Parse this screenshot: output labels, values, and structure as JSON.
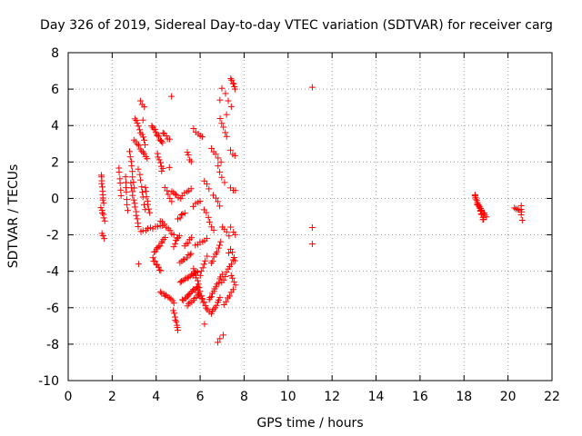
{
  "chart_data": {
    "type": "scatter",
    "title": "Day 326 of 2019, Sidereal Day-to-day VTEC variation (SDTVAR) for receiver carg",
    "xlabel": "GPS time / hours",
    "ylabel": "SDTVAR / TECUs",
    "xlim": [
      0,
      22
    ],
    "ylim": [
      -10,
      8
    ],
    "grid": true,
    "marker": "+",
    "color": "#ff0000",
    "x_ticks": [
      "0",
      "2",
      "4",
      "6",
      "8",
      "10",
      "12",
      "14",
      "16",
      "18",
      "20",
      "22"
    ],
    "y_ticks": [
      "-10",
      "-8",
      "-6",
      "-4",
      "-2",
      "0",
      "2",
      "4",
      "6",
      "8"
    ],
    "clusters": [
      {
        "x_start": 1.5,
        "x_end": 1.6,
        "y_start": 1.3,
        "y_end": -0.3,
        "n": 10
      },
      {
        "x_start": 1.5,
        "x_end": 1.65,
        "y_start": -0.5,
        "y_end": -1.2,
        "n": 6
      },
      {
        "x_start": 1.55,
        "x_end": 1.62,
        "y_start": -1.9,
        "y_end": -2.2,
        "n": 3
      },
      {
        "x_start": 2.3,
        "x_end": 2.4,
        "y_start": 1.7,
        "y_end": 0.2,
        "n": 6
      },
      {
        "x_start": 2.6,
        "x_end": 2.7,
        "y_start": 1.2,
        "y_end": -0.6,
        "n": 7
      },
      {
        "x_start": 2.8,
        "x_end": 3.0,
        "y_start": 2.6,
        "y_end": 0.6,
        "n": 8
      },
      {
        "x_start": 2.85,
        "x_end": 3.2,
        "y_start": 0.8,
        "y_end": -1.6,
        "n": 12
      },
      {
        "x_start": 3.05,
        "x_end": 3.5,
        "y_start": 4.4,
        "y_end": 3.0,
        "n": 10
      },
      {
        "x_start": 3.0,
        "x_end": 3.6,
        "y_start": 3.2,
        "y_end": 2.2,
        "n": 10
      },
      {
        "x_start": 3.2,
        "x_end": 3.5,
        "y_start": 1.6,
        "y_end": -0.6,
        "n": 8
      },
      {
        "x_start": 3.3,
        "x_end": 3.45,
        "y_start": 5.4,
        "y_end": 5.0,
        "n": 3
      },
      {
        "x_start": 3.3,
        "x_end": 4.3,
        "y_start": -1.8,
        "y_end": -1.5,
        "n": 10
      },
      {
        "x_start": 3.5,
        "x_end": 3.7,
        "y_start": 0.6,
        "y_end": -0.8,
        "n": 7
      },
      {
        "x_start": 3.8,
        "x_end": 4.3,
        "y_start": 4.0,
        "y_end": 3.0,
        "n": 12
      },
      {
        "x_start": 3.9,
        "x_end": 4.4,
        "y_start": -3.0,
        "y_end": -2.2,
        "n": 10
      },
      {
        "x_start": 3.85,
        "x_end": 4.2,
        "y_start": -3.3,
        "y_end": -4.0,
        "n": 8
      },
      {
        "x_start": 4.05,
        "x_end": 4.3,
        "y_start": 2.5,
        "y_end": 1.6,
        "n": 6
      },
      {
        "x_start": 4.2,
        "x_end": 4.8,
        "y_start": -1.2,
        "y_end": -2.0,
        "n": 8
      },
      {
        "x_start": 4.3,
        "x_end": 4.6,
        "y_start": 3.6,
        "y_end": 3.2,
        "n": 5
      },
      {
        "x_start": 4.4,
        "x_end": 4.7,
        "y_start": 0.6,
        "y_end": -0.2,
        "n": 5
      },
      {
        "x_start": 4.2,
        "x_end": 4.8,
        "y_start": -5.1,
        "y_end": -5.7,
        "n": 10
      },
      {
        "x_start": 4.7,
        "x_end": 5.1,
        "y_start": 0.4,
        "y_end": 0.0,
        "n": 6
      },
      {
        "x_start": 4.8,
        "x_end": 5.05,
        "y_start": -2.6,
        "y_end": -2.0,
        "n": 6
      },
      {
        "x_start": 4.8,
        "x_end": 5.0,
        "y_start": -6.2,
        "y_end": -7.2,
        "n": 8
      },
      {
        "x_start": 5.0,
        "x_end": 5.3,
        "y_start": -1.1,
        "y_end": -0.8,
        "n": 5
      },
      {
        "x_start": 5.2,
        "x_end": 5.6,
        "y_start": 0.2,
        "y_end": 0.5,
        "n": 5
      },
      {
        "x_start": 5.1,
        "x_end": 5.6,
        "y_start": -3.5,
        "y_end": -3.0,
        "n": 8
      },
      {
        "x_start": 5.4,
        "x_end": 5.6,
        "y_start": 2.5,
        "y_end": 2.0,
        "n": 4
      },
      {
        "x_start": 5.3,
        "x_end": 5.6,
        "y_start": -2.6,
        "y_end": -2.2,
        "n": 5
      },
      {
        "x_start": 5.1,
        "x_end": 5.9,
        "y_start": -4.6,
        "y_end": -4.0,
        "n": 14
      },
      {
        "x_start": 5.2,
        "x_end": 5.9,
        "y_start": -5.6,
        "y_end": -4.8,
        "n": 14
      },
      {
        "x_start": 5.4,
        "x_end": 5.9,
        "y_start": -5.9,
        "y_end": -5.3,
        "n": 8
      },
      {
        "x_start": 5.7,
        "x_end": 6.1,
        "y_start": 3.8,
        "y_end": 3.4,
        "n": 5
      },
      {
        "x_start": 5.7,
        "x_end": 6.0,
        "y_start": -0.4,
        "y_end": -0.2,
        "n": 4
      },
      {
        "x_start": 5.8,
        "x_end": 6.3,
        "y_start": -2.6,
        "y_end": -2.2,
        "n": 6
      },
      {
        "x_start": 5.7,
        "x_end": 6.1,
        "y_start": -3.8,
        "y_end": -5.5,
        "n": 10
      },
      {
        "x_start": 5.9,
        "x_end": 6.4,
        "y_start": -5.2,
        "y_end": -6.2,
        "n": 10
      },
      {
        "x_start": 6.0,
        "x_end": 6.3,
        "y_start": -4.2,
        "y_end": -3.2,
        "n": 6
      },
      {
        "x_start": 6.2,
        "x_end": 6.4,
        "y_start": 1.0,
        "y_end": 0.5,
        "n": 3
      },
      {
        "x_start": 6.2,
        "x_end": 6.6,
        "y_start": -0.6,
        "y_end": -1.8,
        "n": 6
      },
      {
        "x_start": 6.5,
        "x_end": 6.8,
        "y_start": 2.8,
        "y_end": 2.2,
        "n": 4
      },
      {
        "x_start": 6.6,
        "x_end": 6.9,
        "y_start": 0.2,
        "y_end": -0.4,
        "n": 4
      },
      {
        "x_start": 6.5,
        "x_end": 6.95,
        "y_start": -3.6,
        "y_end": -2.4,
        "n": 8
      },
      {
        "x_start": 6.4,
        "x_end": 7.0,
        "y_start": -5.6,
        "y_end": -4.2,
        "n": 12
      },
      {
        "x_start": 6.5,
        "x_end": 6.9,
        "y_start": -6.3,
        "y_end": -5.5,
        "n": 8
      },
      {
        "x_start": 6.8,
        "x_end": 7.1,
        "y_start": 1.8,
        "y_end": 0.9,
        "n": 4
      },
      {
        "x_start": 6.9,
        "x_end": 7.2,
        "y_start": 4.4,
        "y_end": 3.4,
        "n": 5
      },
      {
        "x_start": 7.0,
        "x_end": 7.4,
        "y_start": 6.1,
        "y_end": 5.0,
        "n": 4
      },
      {
        "x_start": 7.0,
        "x_end": 7.3,
        "y_start": -1.6,
        "y_end": -2.0,
        "n": 4
      },
      {
        "x_start": 7.0,
        "x_end": 7.5,
        "y_start": -4.6,
        "y_end": -3.4,
        "n": 8
      },
      {
        "x_start": 7.1,
        "x_end": 7.5,
        "y_start": -5.8,
        "y_end": -5.0,
        "n": 6
      },
      {
        "x_start": 7.4,
        "x_end": 7.6,
        "y_start": 6.6,
        "y_end": 6.0,
        "n": 6
      },
      {
        "x_start": 7.4,
        "x_end": 7.6,
        "y_start": 2.6,
        "y_end": 2.3,
        "n": 3
      },
      {
        "x_start": 7.4,
        "x_end": 7.6,
        "y_start": 0.6,
        "y_end": 0.4,
        "n": 3
      },
      {
        "x_start": 7.4,
        "x_end": 7.6,
        "y_start": -1.6,
        "y_end": -2.0,
        "n": 3
      },
      {
        "x_start": 7.4,
        "x_end": 7.6,
        "y_start": -2.8,
        "y_end": -3.4,
        "n": 4
      },
      {
        "x_start": 7.4,
        "x_end": 7.6,
        "y_start": -4.2,
        "y_end": -4.8,
        "n": 4
      },
      {
        "x_start": 18.5,
        "x_end": 18.9,
        "y_start": 0.2,
        "y_end": -1.2,
        "n": 16
      },
      {
        "x_start": 18.6,
        "x_end": 19.0,
        "y_start": -0.3,
        "y_end": -1.0,
        "n": 10
      },
      {
        "x_start": 20.3,
        "x_end": 20.6,
        "y_start": -0.55,
        "y_end": -0.7,
        "n": 5
      }
    ],
    "points": [
      {
        "x": 3.2,
        "y": -3.6
      },
      {
        "x": 3.4,
        "y": 4.3
      },
      {
        "x": 4.25,
        "y": 1.5
      },
      {
        "x": 4.7,
        "y": 5.6
      },
      {
        "x": 4.6,
        "y": 1.7
      },
      {
        "x": 6.9,
        "y": 5.4
      },
      {
        "x": 6.95,
        "y": 2.0
      },
      {
        "x": 7.2,
        "y": 4.6
      },
      {
        "x": 6.8,
        "y": -7.9
      },
      {
        "x": 6.9,
        "y": -7.7
      },
      {
        "x": 7.05,
        "y": -7.5
      },
      {
        "x": 6.2,
        "y": -6.9
      },
      {
        "x": 7.3,
        "y": -3.0
      },
      {
        "x": 11.1,
        "y": 6.1
      },
      {
        "x": 11.1,
        "y": -1.6
      },
      {
        "x": 11.1,
        "y": -2.5
      },
      {
        "x": 18.5,
        "y": 0.2
      },
      {
        "x": 20.6,
        "y": -0.4
      },
      {
        "x": 20.6,
        "y": -0.6
      },
      {
        "x": 20.6,
        "y": -0.9
      },
      {
        "x": 20.65,
        "y": -1.2
      }
    ]
  }
}
